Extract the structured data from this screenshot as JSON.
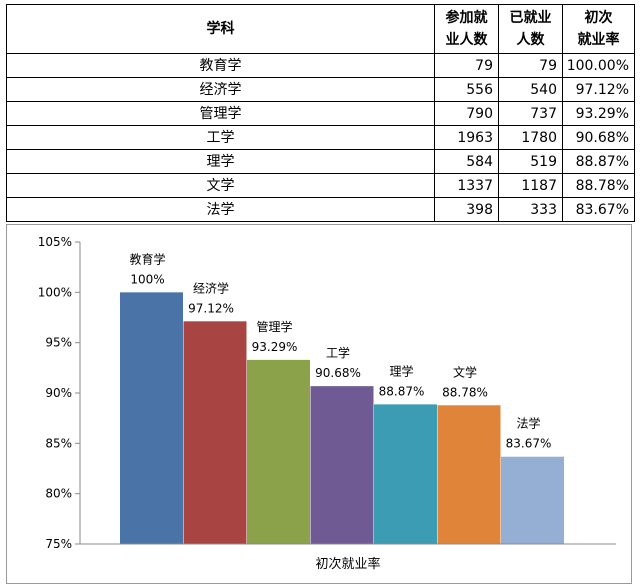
{
  "table": {
    "headers": [
      "学科",
      "参加就业人数",
      "已就业人数",
      "初次就业率"
    ],
    "headers_lines": [
      [
        "学科"
      ],
      [
        "参加就",
        "业人数"
      ],
      [
        "已就业",
        "人数"
      ],
      [
        "初次",
        "就业率"
      ]
    ],
    "rows": [
      [
        "教育学",
        "79",
        "79",
        "100.00%"
      ],
      [
        "经济学",
        "556",
        "540",
        "97.12%"
      ],
      [
        "管理学",
        "790",
        "737",
        "93.29%"
      ],
      [
        "工学",
        "1963",
        "1780",
        "90.68%"
      ],
      [
        "理学",
        "584",
        "519",
        "88.87%"
      ],
      [
        "文学",
        "1337",
        "1187",
        "88.78%"
      ],
      [
        "法学",
        "398",
        "333",
        "83.67%"
      ]
    ]
  },
  "chart_data": {
    "type": "bar",
    "categories": [
      "教育学",
      "经济学",
      "管理学",
      "工学",
      "理学",
      "文学",
      "法学"
    ],
    "values": [
      100,
      97.12,
      93.29,
      90.68,
      88.87,
      88.78,
      83.67
    ],
    "value_labels": [
      "100%",
      "97.12%",
      "93.29%",
      "90.68%",
      "88.87%",
      "88.78%",
      "83.67%"
    ],
    "colors": [
      "#4a73a8",
      "#a84442",
      "#8ba14a",
      "#6f5a94",
      "#3c9cb4",
      "#e0843a",
      "#94aed4"
    ],
    "xlabel": "初次就业率",
    "ylabel": "",
    "ylim": [
      75,
      105
    ],
    "yticks": [
      75,
      80,
      85,
      90,
      95,
      100,
      105
    ],
    "ytick_labels": [
      "75%",
      "80%",
      "85%",
      "90%",
      "95%",
      "100%",
      "105%"
    ],
    "grid": false,
    "legend": "none"
  }
}
